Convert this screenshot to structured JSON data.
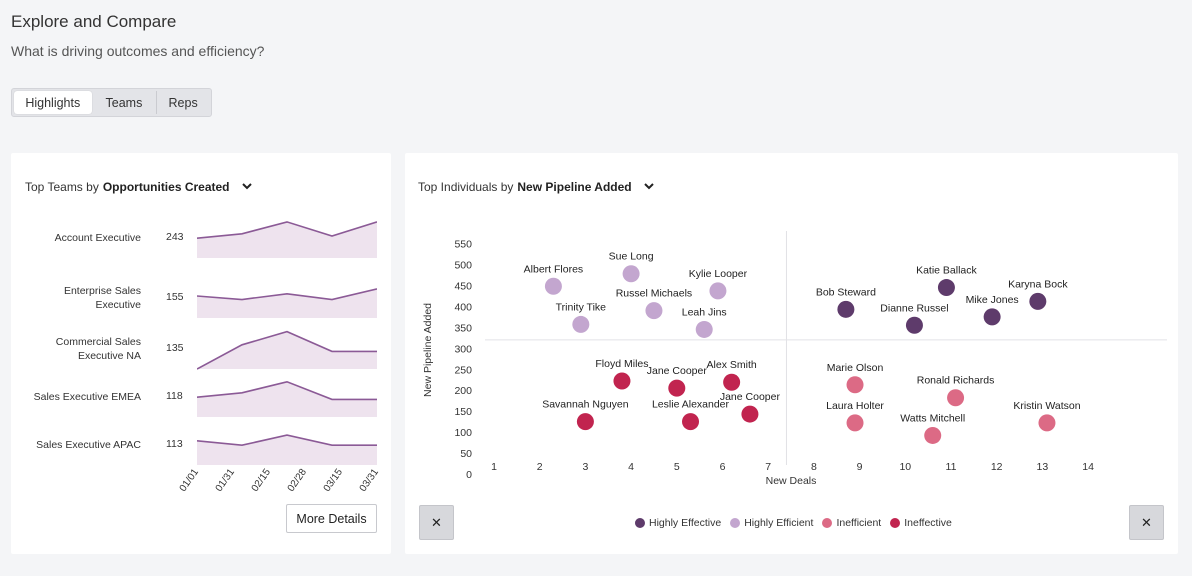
{
  "page": {
    "title": "Explore and Compare",
    "subtitle": "What is driving outcomes and efficiency?"
  },
  "tabs": [
    {
      "label": "Highlights",
      "active": true
    },
    {
      "label": "Teams",
      "active": false
    },
    {
      "label": "Reps",
      "active": false
    }
  ],
  "teams_panel": {
    "prefix": "Top Teams by",
    "metric": "Opportunities Created",
    "rows": [
      {
        "label": "Account Executive",
        "value": "243",
        "trend": [
          0.45,
          0.55,
          0.82,
          0.5,
          0.82
        ]
      },
      {
        "label": "Enterprise Sales Executive",
        "value": "155",
        "trend": [
          0.5,
          0.42,
          0.55,
          0.42,
          0.66
        ]
      },
      {
        "label": "Commercial Sales Executive NA",
        "value": "135",
        "trend": [
          0.0,
          0.55,
          0.85,
          0.4,
          0.4
        ]
      },
      {
        "label": "Sales Executive EMEA",
        "value": "118",
        "trend": [
          0.45,
          0.55,
          0.8,
          0.4,
          0.4
        ]
      },
      {
        "label": "Sales Executive APAC",
        "value": "113",
        "trend": [
          0.55,
          0.45,
          0.68,
          0.45,
          0.45
        ]
      }
    ],
    "x_ticks": [
      "01/01",
      "01/31",
      "02/15",
      "02/28",
      "03/15",
      "03/31"
    ],
    "more_label": "More Details"
  },
  "individuals_panel": {
    "prefix": "Top Individuals by",
    "metric": "New Pipeline Added",
    "close_left": "✕",
    "close_right": "✕"
  },
  "colors": {
    "line": "#8b5a96",
    "fill": "#eee3ee",
    "highly_effective": "#5e3b6b",
    "highly_efficient": "#c3a6cf",
    "inefficient": "#dc6a85",
    "ineffective": "#c1244f"
  },
  "chart_data": {
    "type": "scatter",
    "xlabel": "New Deals",
    "ylabel": "New Pipeline Added",
    "xlim": [
      1,
      14
    ],
    "ylim": [
      0,
      550
    ],
    "x_ticks": [
      1,
      2,
      3,
      4,
      5,
      6,
      7,
      8,
      9,
      10,
      11,
      12,
      13,
      14
    ],
    "y_ticks": [
      0,
      50,
      100,
      150,
      200,
      250,
      300,
      350,
      400,
      450,
      500,
      550
    ],
    "quadrant_lines": {
      "x": 7.4,
      "y": 320
    },
    "legend": [
      "Highly Effective",
      "Highly Efficient",
      "Inefficient",
      "Ineffective"
    ],
    "series": [
      {
        "name": "Highly Effective",
        "points": [
          {
            "label": "Katie Ballack",
            "x": 10.9,
            "y": 445
          },
          {
            "label": "Karyna Bock",
            "x": 12.9,
            "y": 412
          },
          {
            "label": "Bob Steward",
            "x": 8.7,
            "y": 393
          },
          {
            "label": "Mike Jones",
            "x": 11.9,
            "y": 375
          },
          {
            "label": "Dianne Russel",
            "x": 10.2,
            "y": 355
          }
        ]
      },
      {
        "name": "Highly Efficient",
        "points": [
          {
            "label": "Sue Long",
            "x": 4.0,
            "y": 478
          },
          {
            "label": "Albert Flores",
            "x": 2.3,
            "y": 448
          },
          {
            "label": "Kylie Looper",
            "x": 5.9,
            "y": 437
          },
          {
            "label": "Russel Michaels",
            "x": 4.5,
            "y": 390
          },
          {
            "label": "Trinity Tike",
            "x": 2.9,
            "y": 357
          },
          {
            "label": "Leah Jins",
            "x": 5.6,
            "y": 345
          }
        ]
      },
      {
        "name": "Inefficient",
        "points": [
          {
            "label": "Marie Olson",
            "x": 8.9,
            "y": 213
          },
          {
            "label": "Ronald Richards",
            "x": 11.1,
            "y": 182
          },
          {
            "label": "Laura Holter",
            "x": 8.9,
            "y": 122
          },
          {
            "label": "Kristin Watson",
            "x": 13.1,
            "y": 122
          },
          {
            "label": "Watts Mitchell",
            "x": 10.6,
            "y": 92
          }
        ]
      },
      {
        "name": "Ineffective",
        "points": [
          {
            "label": "Floyd Miles",
            "x": 3.8,
            "y": 222
          },
          {
            "label": "Alex Smith",
            "x": 6.2,
            "y": 219
          },
          {
            "label": "Jane Cooper",
            "x": 5.0,
            "y": 205
          },
          {
            "label": "Jane Cooper",
            "x": 6.6,
            "y": 143
          },
          {
            "label": "Savannah Nguyen",
            "x": 3.0,
            "y": 125
          },
          {
            "label": "Leslie Alexander",
            "x": 5.3,
            "y": 125
          }
        ]
      }
    ]
  }
}
